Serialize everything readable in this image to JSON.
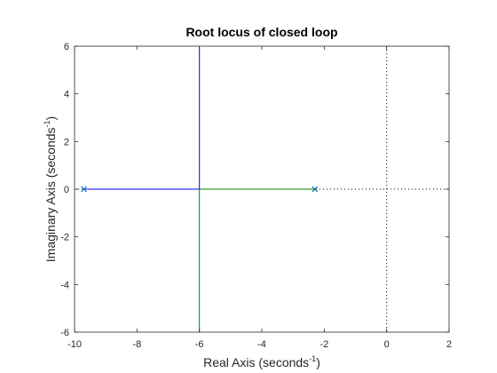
{
  "chart_data": {
    "type": "line",
    "title": "Root locus of closed loop",
    "xlabel": {
      "text": "Real Axis (seconds",
      "sup": "-1",
      "close": ")"
    },
    "ylabel": {
      "text": "Imaginary Axis (seconds",
      "sup": "-1",
      "close": ")"
    },
    "xlim": [
      -10,
      2
    ],
    "ylim": [
      -6,
      6
    ],
    "xticks": [
      -10,
      -8,
      -6,
      -4,
      -2,
      0,
      2
    ],
    "yticks": [
      -6,
      -4,
      -2,
      0,
      2,
      4,
      6
    ],
    "grid": false,
    "series": [
      {
        "color": "#0000ff",
        "x": [
          -9.7,
          -6,
          -6
        ],
        "y": [
          0,
          0,
          6
        ]
      },
      {
        "color": "#008000",
        "x": [
          -2.3,
          -6,
          -6
        ],
        "y": [
          0,
          0,
          -6
        ]
      }
    ],
    "poles": [
      {
        "x": -9.7,
        "y": 0
      },
      {
        "x": -2.3,
        "y": 0
      }
    ],
    "marker_color": "#0072bd",
    "reference_lines": [
      {
        "orientation": "horizontal",
        "value": 0
      },
      {
        "orientation": "vertical",
        "value": 0
      }
    ]
  }
}
